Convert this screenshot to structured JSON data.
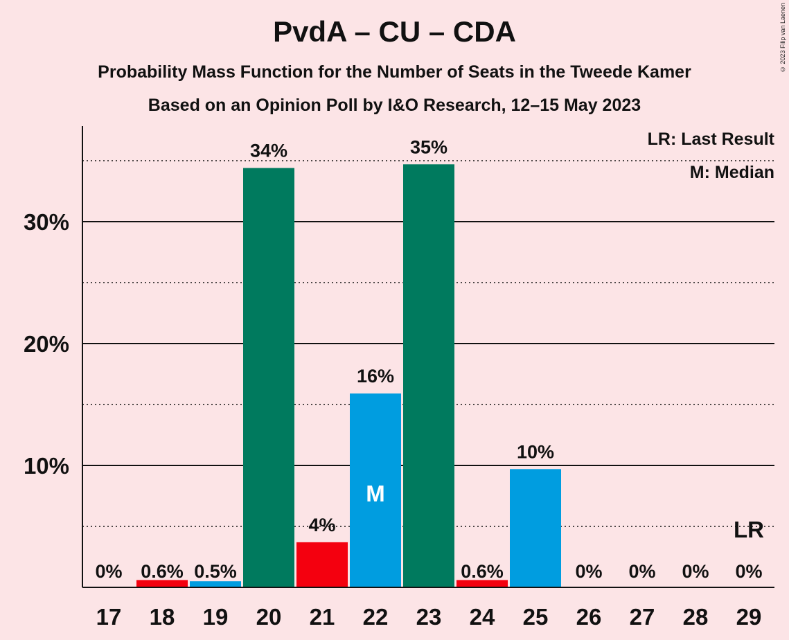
{
  "title": "PvdA – CU – CDA",
  "subtitle1": "Probability Mass Function for the Number of Seats in the Tweede Kamer",
  "subtitle2": "Based on an Opinion Poll by I&O Research, 12–15 May 2023",
  "copyright": "© 2023 Filip van Laenen",
  "legend": {
    "last_result": "LR: Last Result",
    "median": "M: Median"
  },
  "colors": {
    "background": "#fce4e6",
    "green": "#007a5e",
    "red": "#f4000f",
    "blue": "#009de0"
  },
  "chart_data": {
    "type": "bar",
    "categories": [
      "17",
      "18",
      "19",
      "20",
      "21",
      "22",
      "23",
      "24",
      "25",
      "26",
      "27",
      "28",
      "29"
    ],
    "values": [
      0,
      0.6,
      0.5,
      34.4,
      3.7,
      15.9,
      34.7,
      0.6,
      9.7,
      0,
      0,
      0,
      0
    ],
    "labels": [
      "0%",
      "0.6%",
      "0.5%",
      "34%",
      "4%",
      "16%",
      "35%",
      "0.6%",
      "10%",
      "0%",
      "0%",
      "0%",
      "0%"
    ],
    "bar_colors": [
      "none",
      "red",
      "blue",
      "green",
      "red",
      "blue",
      "green",
      "red",
      "blue",
      "none",
      "none",
      "none",
      "none"
    ],
    "median_category": "22",
    "median_marker": "M",
    "last_result_category": "29",
    "last_result_marker": "LR",
    "yticks": [
      10,
      20,
      30
    ],
    "ytick_labels": [
      "10%",
      "20%",
      "30%"
    ],
    "dotted_gridlines": [
      5,
      15,
      25,
      35
    ],
    "ylim": [
      0,
      37.5
    ]
  }
}
